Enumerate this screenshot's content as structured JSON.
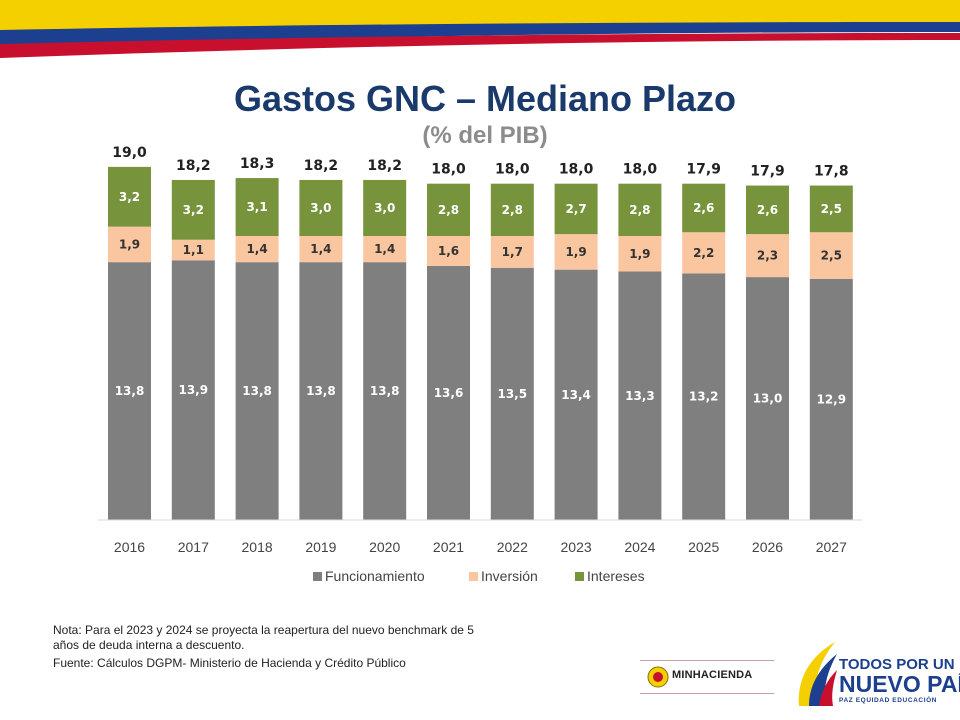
{
  "header": {
    "title": "Gastos GNC – Mediano Plazo",
    "subtitle": "(% del PIB)"
  },
  "colors": {
    "funcionamiento": "#7f7f7f",
    "inversion": "#f9c6a0",
    "intereses": "#77933c",
    "title": "#1a3a6b",
    "flag_yellow": "#f5d000",
    "flag_blue": "#1c3f8f",
    "flag_red": "#c8102e"
  },
  "chart_data": {
    "type": "bar",
    "stacked": true,
    "categories": [
      "2016",
      "2017",
      "2018",
      "2019",
      "2020",
      "2021",
      "2022",
      "2023",
      "2024",
      "2025",
      "2026",
      "2027"
    ],
    "series": [
      {
        "name": "Funcionamiento",
        "values": [
          13.8,
          13.9,
          13.8,
          13.8,
          13.8,
          13.6,
          13.5,
          13.4,
          13.3,
          13.2,
          13.0,
          12.9
        ],
        "labels": [
          "13,8",
          "13,9",
          "13,8",
          "13,8",
          "13,8",
          "13,6",
          "13,5",
          "13,4",
          "13,3",
          "13,2",
          "13,0",
          "12,9"
        ]
      },
      {
        "name": "Inversión",
        "values": [
          1.9,
          1.1,
          1.4,
          1.4,
          1.4,
          1.6,
          1.7,
          1.9,
          1.9,
          2.2,
          2.3,
          2.5
        ],
        "labels": [
          "1,9",
          "1,1",
          "1,4",
          "1,4",
          "1,4",
          "1,6",
          "1,7",
          "1,9",
          "1,9",
          "2,2",
          "2,3",
          "2,5"
        ]
      },
      {
        "name": "Intereses",
        "values": [
          3.2,
          3.2,
          3.1,
          3.0,
          3.0,
          2.8,
          2.8,
          2.7,
          2.8,
          2.6,
          2.6,
          2.5
        ],
        "labels": [
          "3,2",
          "3,2",
          "3,1",
          "3,0",
          "3,0",
          "2,8",
          "2,8",
          "2,7",
          "2,8",
          "2,6",
          "2,6",
          "2,5"
        ]
      }
    ],
    "totals": [
      19.0,
      18.2,
      18.3,
      18.2,
      18.2,
      18.0,
      18.0,
      18.0,
      18.0,
      17.9,
      17.9,
      17.8
    ],
    "total_labels": [
      "19,0",
      "18,2",
      "18,3",
      "18,2",
      "18,2",
      "18,0",
      "18,0",
      "18,0",
      "18,0",
      "17,9",
      "17,9",
      "17,8"
    ],
    "ylim": [
      0,
      19
    ],
    "legend_position": "bottom",
    "grid": false
  },
  "notes": {
    "line1": "Nota: Para el 2023 y 2024 se proyecta la reapertura del nuevo benchmark de 5",
    "line2": "años de deuda interna a descuento.",
    "source": "Fuente: Cálculos DGPM- Ministerio de Hacienda y Crédito Público"
  },
  "logos": {
    "minhacienda": "MINHACIENDA",
    "slogan_line1": "TODOS POR UN",
    "slogan_line2": "NUEVO PAÍS",
    "slogan_line3": "PAZ EQUIDAD EDUCACIÓN"
  }
}
